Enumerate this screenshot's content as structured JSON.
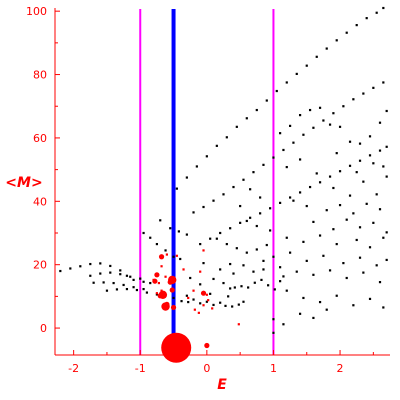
{
  "chart_data": {
    "type": "scatter",
    "title": "",
    "xlabel": "E",
    "ylabel": "<M>",
    "xlim": [
      -2.28,
      2.75
    ],
    "ylim": [
      -8.5,
      101
    ],
    "grid": false,
    "axis_color": "#ff0000",
    "x_ticks": [
      -2,
      -1,
      0,
      1,
      2
    ],
    "x_tick_labels": [
      "-2",
      "-1",
      "0",
      "1",
      "2"
    ],
    "y_ticks": [
      0,
      20,
      40,
      60,
      80,
      100
    ],
    "y_tick_labels": [
      "0",
      "20",
      "40",
      "60",
      "80",
      "100"
    ],
    "vertical_lines": [
      {
        "x": -1.0,
        "color": "#ff00ff",
        "style": "thin"
      },
      {
        "x": -0.5,
        "color": "#0000ff",
        "style": "thick"
      },
      {
        "x": 1.0,
        "color": "#ff00ff",
        "style": "thin"
      }
    ],
    "series": [
      {
        "color": "#000000",
        "marker": "dot",
        "points": [
          [
            -2.2,
            18
          ],
          [
            -2.05,
            18.8
          ],
          [
            -1.9,
            19.5
          ],
          [
            -1.75,
            20.2
          ],
          [
            -1.6,
            20.4
          ],
          [
            -1.45,
            19.6
          ],
          [
            -1.3,
            18.2
          ],
          [
            -1.2,
            16.5
          ],
          [
            -1.1,
            15.2
          ],
          [
            -0.95,
            14.6
          ],
          [
            -0.85,
            14.2
          ],
          [
            -1.75,
            16.5
          ],
          [
            -1.6,
            17.2
          ],
          [
            -1.45,
            17.5
          ],
          [
            -1.3,
            17.0
          ],
          [
            -1.15,
            16.2
          ],
          [
            -1.0,
            15.6
          ],
          [
            -1.7,
            14.3
          ],
          [
            -1.55,
            14.4
          ],
          [
            -1.4,
            14.2
          ],
          [
            -1.25,
            13.6
          ],
          [
            -1.1,
            12.9
          ],
          [
            -0.95,
            12.3
          ],
          [
            -1.5,
            11.8
          ],
          [
            -1.35,
            12.2
          ],
          [
            -1.2,
            12.3
          ],
          [
            -1.05,
            12.0
          ],
          [
            -0.9,
            11.2
          ],
          [
            -0.75,
            10.6
          ],
          [
            -0.95,
            30
          ],
          [
            -0.85,
            28.5
          ],
          [
            -0.75,
            26.5
          ],
          [
            -0.62,
            24.5
          ],
          [
            -0.5,
            22.5
          ],
          [
            -0.4,
            21.8
          ],
          [
            -0.7,
            34
          ],
          [
            -0.55,
            31.5
          ],
          [
            -0.42,
            30.5
          ],
          [
            -0.3,
            29.5
          ],
          [
            -0.5,
            9.5
          ],
          [
            -0.38,
            8.5
          ],
          [
            -0.28,
            8.2
          ],
          [
            -0.2,
            9.0
          ],
          [
            -0.1,
            7.8
          ],
          [
            0.0,
            8.3
          ],
          [
            0.1,
            7.3
          ],
          [
            0.2,
            8.0
          ],
          [
            0.28,
            7.0
          ],
          [
            0.38,
            6.8
          ],
          [
            0.48,
            7.4
          ],
          [
            0.55,
            8.3
          ],
          [
            -0.3,
            10.2
          ],
          [
            0.05,
            10.8
          ],
          [
            0.32,
            10.0
          ],
          [
            0.42,
            12.8
          ],
          [
            0.52,
            13.2
          ],
          [
            0.62,
            12.8
          ],
          [
            0.72,
            14.3
          ],
          [
            0.82,
            15.2
          ],
          [
            0.92,
            13.5
          ],
          [
            1.02,
            12.2
          ],
          [
            1.1,
            14.8
          ],
          [
            1.15,
            16.3
          ],
          [
            -0.45,
            44
          ],
          [
            -0.3,
            47.5
          ],
          [
            -0.15,
            51
          ],
          [
            0.0,
            54.2
          ],
          [
            0.15,
            57.5
          ],
          [
            0.3,
            60.2
          ],
          [
            0.45,
            63.5
          ],
          [
            0.6,
            66.2
          ],
          [
            0.75,
            68.8
          ],
          [
            0.9,
            71.8
          ],
          [
            1.05,
            74.8
          ],
          [
            1.2,
            77.5
          ],
          [
            1.35,
            80.2
          ],
          [
            1.5,
            82.8
          ],
          [
            1.65,
            85.6
          ],
          [
            1.8,
            88.2
          ],
          [
            1.95,
            90.8
          ],
          [
            2.1,
            93.2
          ],
          [
            2.25,
            95.6
          ],
          [
            2.4,
            97.8
          ],
          [
            2.55,
            99.5
          ],
          [
            2.65,
            101
          ],
          [
            -0.2,
            36.5
          ],
          [
            -0.05,
            38.2
          ],
          [
            0.1,
            40.2
          ],
          [
            0.25,
            42.2
          ],
          [
            0.4,
            44.5
          ],
          [
            0.55,
            46.8
          ],
          [
            0.7,
            49.2
          ],
          [
            0.85,
            51.5
          ],
          [
            1.0,
            53.8
          ],
          [
            1.15,
            56.2
          ],
          [
            1.3,
            58.5
          ],
          [
            1.45,
            61.0
          ],
          [
            1.6,
            63.2
          ],
          [
            1.75,
            65.5
          ],
          [
            1.9,
            67.8
          ],
          [
            2.05,
            70.0
          ],
          [
            2.2,
            72.2
          ],
          [
            2.35,
            74.0
          ],
          [
            2.5,
            75.8
          ],
          [
            2.65,
            77.5
          ],
          [
            -0.1,
            26.5
          ],
          [
            0.05,
            28.2
          ],
          [
            0.2,
            30.0
          ],
          [
            0.35,
            31.5
          ],
          [
            0.5,
            33.2
          ],
          [
            0.65,
            34.8
          ],
          [
            0.8,
            36.2
          ],
          [
            0.95,
            37.8
          ],
          [
            1.1,
            39.5
          ],
          [
            1.25,
            41.2
          ],
          [
            1.4,
            42.8
          ],
          [
            1.55,
            44.5
          ],
          [
            1.7,
            46.0
          ],
          [
            1.85,
            47.8
          ],
          [
            2.0,
            49.5
          ],
          [
            2.15,
            51.2
          ],
          [
            2.3,
            52.8
          ],
          [
            2.45,
            54.5
          ],
          [
            2.6,
            56.0
          ],
          [
            2.7,
            57.2
          ],
          [
            1.1,
            61.5
          ],
          [
            1.25,
            63.8
          ],
          [
            1.4,
            67.2
          ],
          [
            1.55,
            68.8
          ],
          [
            1.7,
            69.5
          ],
          [
            1.85,
            64.2
          ],
          [
            2.0,
            63.5
          ],
          [
            2.15,
            58.8
          ],
          [
            2.3,
            58.2
          ],
          [
            2.45,
            60.5
          ],
          [
            2.6,
            64.8
          ],
          [
            2.7,
            68.5
          ],
          [
            1.2,
            50.8
          ],
          [
            1.4,
            53.2
          ],
          [
            1.65,
            48.8
          ],
          [
            1.9,
            44.2
          ],
          [
            2.15,
            41.8
          ],
          [
            2.35,
            46.2
          ],
          [
            2.55,
            42.2
          ],
          [
            2.7,
            47.8
          ],
          [
            1.95,
            55.2
          ],
          [
            2.25,
            49.2
          ],
          [
            2.5,
            52.0
          ],
          [
            2.65,
            51.0
          ],
          [
            1.3,
            40.2
          ],
          [
            1.5,
            38.5
          ],
          [
            1.8,
            37.2
          ],
          [
            2.0,
            38.8
          ],
          [
            2.2,
            36.2
          ],
          [
            2.4,
            39.2
          ],
          [
            2.6,
            37.5
          ],
          [
            1.6,
            33.5
          ],
          [
            1.9,
            31.2
          ],
          [
            2.1,
            34.2
          ],
          [
            2.3,
            31.8
          ],
          [
            2.5,
            33.2
          ],
          [
            2.7,
            30.2
          ],
          [
            1.2,
            28.5
          ],
          [
            1.45,
            27.2
          ],
          [
            1.7,
            29.2
          ],
          [
            1.95,
            26.5
          ],
          [
            2.25,
            27.8
          ],
          [
            2.45,
            25.5
          ],
          [
            2.65,
            28.5
          ],
          [
            1.0,
            22.5
          ],
          [
            1.25,
            23.8
          ],
          [
            1.5,
            21.2
          ],
          [
            1.75,
            22.8
          ],
          [
            2.05,
            20.5
          ],
          [
            2.3,
            22.2
          ],
          [
            2.55,
            19.8
          ],
          [
            2.7,
            21.5
          ],
          [
            0.85,
            18.5
          ],
          [
            1.1,
            19.2
          ],
          [
            1.35,
            17.8
          ],
          [
            1.6,
            16.8
          ],
          [
            1.85,
            18.2
          ],
          [
            2.1,
            15.8
          ],
          [
            2.35,
            17.5
          ],
          [
            2.6,
            14.5
          ],
          [
            1.2,
            11.8
          ],
          [
            1.45,
            9.5
          ],
          [
            1.7,
            8.2
          ],
          [
            1.95,
            10.2
          ],
          [
            2.2,
            7.2
          ],
          [
            2.45,
            9.2
          ],
          [
            2.65,
            6.5
          ],
          [
            1.4,
            4.5
          ],
          [
            1.6,
            3.2
          ],
          [
            1.8,
            5.8
          ],
          [
            1.0,
            2.8
          ],
          [
            1.15,
            1.2
          ],
          [
            1.0,
            -1.5
          ],
          [
            0.15,
            28.2
          ],
          [
            0.3,
            26.5
          ],
          [
            0.45,
            25.2
          ],
          [
            0.6,
            23.8
          ],
          [
            0.75,
            24.8
          ],
          [
            0.9,
            26.2
          ],
          [
            0.35,
            20.2
          ],
          [
            0.55,
            19.8
          ],
          [
            0.7,
            17.8
          ],
          [
            0.85,
            21.2
          ],
          [
            0.4,
            17.2
          ],
          [
            0.2,
            18.5
          ],
          [
            -0.05,
            20.5
          ],
          [
            0.1,
            15.5
          ],
          [
            0.25,
            14.2
          ],
          [
            0.35,
            12.5
          ],
          [
            -0.25,
            15.8
          ],
          [
            -0.1,
            13.8
          ],
          [
            0.6,
            33.8
          ],
          [
            0.75,
            32.2
          ],
          [
            0.95,
            30.8
          ],
          [
            0.5,
            38.5
          ],
          [
            0.8,
            41.2
          ],
          [
            0.65,
            43.8
          ]
        ]
      },
      {
        "color": "#ff0000",
        "marker": "dot",
        "points": [
          [
            -0.8,
            15.2
          ],
          [
            -0.72,
            14.2
          ],
          [
            -0.68,
            11.8
          ],
          [
            -0.75,
            11.0
          ],
          [
            -0.62,
            16.2
          ],
          [
            -0.6,
            23.2
          ],
          [
            -0.45,
            22.8
          ],
          [
            -0.35,
            18.5
          ],
          [
            -0.05,
            24.5
          ],
          [
            -0.1,
            17.8
          ],
          [
            -0.28,
            9.5
          ],
          [
            -0.18,
            5.8
          ],
          [
            -0.12,
            4.8
          ],
          [
            -0.05,
            7.2
          ],
          [
            0.02,
            8.8
          ],
          [
            0.08,
            6.2
          ],
          [
            0.48,
            1.2
          ],
          [
            -0.68,
            19.5
          ],
          [
            -0.2,
            11.8
          ],
          [
            0.0,
            10.5
          ]
        ]
      },
      {
        "color": "#ff0000",
        "marker": "dot-large",
        "points": [
          [
            -0.75,
            16.8
          ],
          [
            -0.78,
            14.8
          ],
          [
            -0.55,
            14.5
          ],
          [
            -0.52,
            12.0
          ],
          [
            -0.7,
            10.2
          ],
          [
            -0.6,
            7.5
          ],
          [
            -0.5,
            6.5
          ],
          [
            -0.68,
            22.5
          ],
          [
            -0.05,
            11.0
          ],
          [
            0.0,
            -5.5
          ]
        ]
      },
      {
        "color": "#ff0000",
        "marker": "dot-xlarge",
        "points": [
          [
            -0.52,
            15.2
          ],
          [
            -0.66,
            10.5
          ],
          [
            -0.62,
            6.8
          ]
        ]
      },
      {
        "color": "#ff0000",
        "marker": "dot-huge",
        "points": [
          [
            -0.46,
            -6.2
          ]
        ]
      }
    ]
  }
}
